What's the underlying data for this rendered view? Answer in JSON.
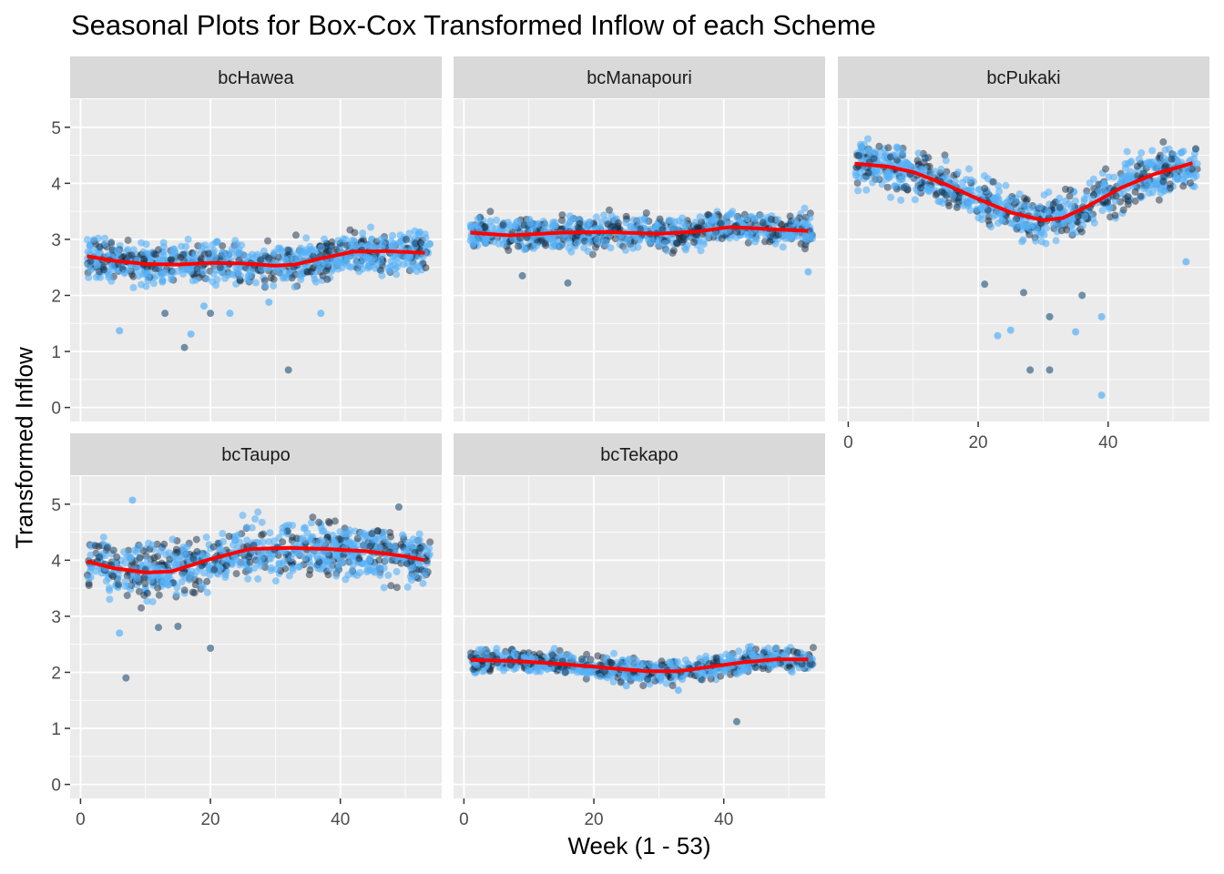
{
  "chart_data": {
    "type": "scatter",
    "title": "Seasonal Plots for Box-Cox Transformed Inflow of each Scheme",
    "xlabel": "Week (1 - 53)",
    "ylabel": "Transformed Inflow",
    "xlim": [
      -1.6,
      55.6
    ],
    "ylim": [
      -0.25,
      5.5
    ],
    "x_ticks": [
      0,
      20,
      40
    ],
    "y_ticks": [
      0,
      1,
      2,
      3,
      4,
      5
    ],
    "grid": true,
    "point_colors": [
      "#56B1F7",
      "#132B43"
    ],
    "smooth_color": "#FF0000",
    "panel_background": "#EBEBEB",
    "strip_background": "#D9D9D9",
    "facets": [
      {
        "name": "bcHawea",
        "smooth": [
          [
            1,
            2.7
          ],
          [
            5,
            2.62
          ],
          [
            10,
            2.56
          ],
          [
            15,
            2.55
          ],
          [
            20,
            2.58
          ],
          [
            25,
            2.57
          ],
          [
            30,
            2.53
          ],
          [
            33,
            2.55
          ],
          [
            37,
            2.66
          ],
          [
            42,
            2.78
          ],
          [
            47,
            2.79
          ],
          [
            53,
            2.76
          ]
        ],
        "band_halfwidth": 0.32,
        "outliers": [
          [
            6,
            1.37
          ],
          [
            16,
            1.07
          ],
          [
            17,
            1.31
          ],
          [
            32,
            0.67
          ],
          [
            20,
            1.68
          ],
          [
            23,
            1.68
          ],
          [
            37,
            1.68
          ],
          [
            13,
            1.68
          ],
          [
            29,
            1.88
          ],
          [
            19,
            1.81
          ]
        ]
      },
      {
        "name": "bcManapouri",
        "smooth": [
          [
            1,
            3.12
          ],
          [
            7,
            3.07
          ],
          [
            15,
            3.12
          ],
          [
            22,
            3.13
          ],
          [
            30,
            3.1
          ],
          [
            36,
            3.14
          ],
          [
            41,
            3.22
          ],
          [
            46,
            3.19
          ],
          [
            53,
            3.15
          ]
        ],
        "band_halfwidth": 0.25,
        "outliers": [
          [
            16,
            2.22
          ],
          [
            53,
            2.42
          ],
          [
            9,
            2.35
          ]
        ]
      },
      {
        "name": "bcPukaki",
        "smooth": [
          [
            1,
            4.35
          ],
          [
            6,
            4.3
          ],
          [
            10,
            4.2
          ],
          [
            15,
            3.98
          ],
          [
            20,
            3.72
          ],
          [
            25,
            3.48
          ],
          [
            30,
            3.34
          ],
          [
            33,
            3.38
          ],
          [
            37,
            3.6
          ],
          [
            42,
            3.92
          ],
          [
            47,
            4.16
          ],
          [
            53,
            4.36
          ]
        ],
        "band_halfwidth": 0.38,
        "outliers": [
          [
            23,
            1.28
          ],
          [
            28,
            0.67
          ],
          [
            31,
            0.67
          ],
          [
            39,
            0.22
          ],
          [
            31,
            1.62
          ],
          [
            35,
            1.35
          ],
          [
            39,
            1.62
          ],
          [
            52,
            2.6
          ],
          [
            21,
            2.2
          ],
          [
            27,
            2.05
          ],
          [
            36,
            2.0
          ],
          [
            25,
            1.38
          ]
        ]
      },
      {
        "name": "bcTaupo",
        "smooth": [
          [
            1,
            3.98
          ],
          [
            5,
            3.86
          ],
          [
            10,
            3.78
          ],
          [
            14,
            3.8
          ],
          [
            20,
            4.02
          ],
          [
            26,
            4.2
          ],
          [
            32,
            4.22
          ],
          [
            38,
            4.2
          ],
          [
            44,
            4.16
          ],
          [
            50,
            4.07
          ],
          [
            53,
            4.0
          ]
        ],
        "band_halfwidth": 0.42,
        "outliers": [
          [
            7,
            1.9
          ],
          [
            20,
            2.43
          ],
          [
            8,
            5.07
          ],
          [
            49,
            4.95
          ],
          [
            15,
            2.82
          ],
          [
            6,
            2.7
          ],
          [
            12,
            2.8
          ]
        ]
      },
      {
        "name": "bcTekapo",
        "smooth": [
          [
            1,
            2.22
          ],
          [
            8,
            2.2
          ],
          [
            15,
            2.15
          ],
          [
            22,
            2.08
          ],
          [
            28,
            2.02
          ],
          [
            33,
            2.02
          ],
          [
            38,
            2.1
          ],
          [
            43,
            2.18
          ],
          [
            48,
            2.23
          ],
          [
            53,
            2.23
          ]
        ],
        "band_halfwidth": 0.18,
        "outliers": [
          [
            42,
            1.12
          ],
          [
            33,
            1.68
          ],
          [
            25,
            1.76
          ]
        ]
      }
    ]
  }
}
